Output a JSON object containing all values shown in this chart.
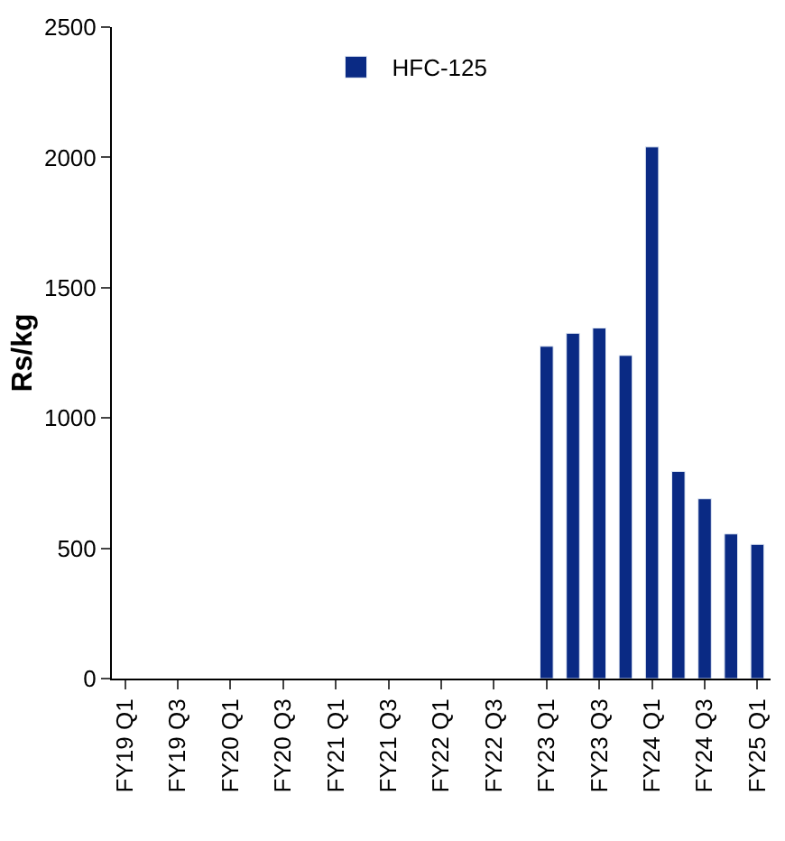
{
  "chart_data": {
    "type": "bar",
    "ylabel": "Rs/kg",
    "categories": [
      "FY19 Q1",
      null,
      "FY19 Q3",
      null,
      "FY20 Q1",
      null,
      "FY20 Q3",
      null,
      "FY21 Q1",
      null,
      "FY21 Q3",
      null,
      "FY22 Q1",
      null,
      "FY22 Q3",
      null,
      "FY23 Q1",
      null,
      "FY23 Q3",
      null,
      "FY24 Q1",
      null,
      "FY24 Q3",
      null,
      "FY25 Q1"
    ],
    "series": [
      {
        "name": "HFC-125",
        "color": "#0a2a84",
        "values": [
          null,
          null,
          null,
          null,
          null,
          null,
          null,
          null,
          null,
          null,
          null,
          null,
          null,
          null,
          null,
          null,
          1275,
          1325,
          1345,
          1240,
          2040,
          795,
          690,
          555,
          515
        ]
      }
    ],
    "ylim": [
      0,
      2500
    ],
    "yticks": [
      0,
      500,
      1000,
      1500,
      2000,
      2500
    ],
    "legend": "top"
  }
}
